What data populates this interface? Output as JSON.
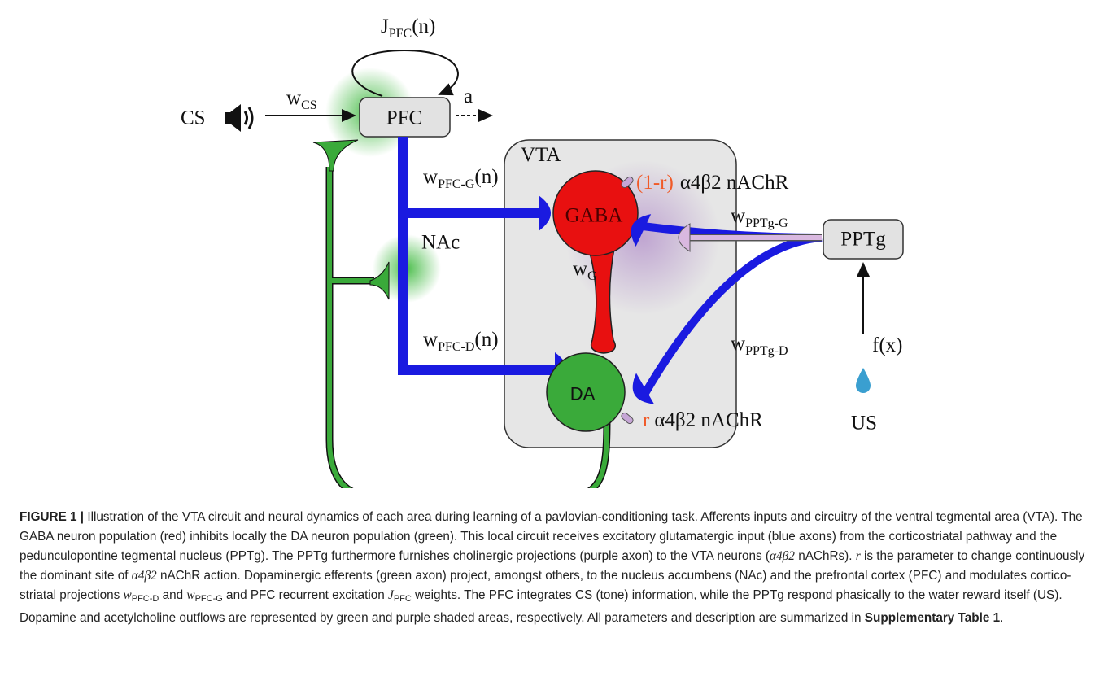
{
  "diagram": {
    "pfc_loop": {
      "main": "J",
      "sub": "PFC",
      "rest": "(n)"
    },
    "cs": "CS",
    "w_cs": {
      "main": "w",
      "sub": "CS"
    },
    "pfc": "PFC",
    "action": "a",
    "vta": "VTA",
    "w_pfc_g": {
      "main": "w",
      "sub": "PFC-G",
      "rest": "(n)"
    },
    "gaba_receptor": {
      "fraction": "(1-r)",
      "receptor": "α4β2 nAChR"
    },
    "gaba": "GABA",
    "w_pptg_g": {
      "main": "w",
      "sub": "PPTg-G"
    },
    "nac": "NAc",
    "w_g": {
      "main": "w",
      "sub": "G"
    },
    "pptg": "PPTg",
    "w_pfc_d": {
      "main": "w",
      "sub": "PFC-D",
      "rest": "(n)"
    },
    "da": "DA",
    "w_pptg_d": {
      "main": "w",
      "sub": "PPTg-D"
    },
    "fx": "f(x)",
    "da_receptor": {
      "fraction": "r",
      "receptor": "α4β2 nAChR"
    },
    "us": "US"
  },
  "caption": {
    "segments": [
      {
        "text": "FIGURE 1 |",
        "style": "bold"
      },
      {
        "text": " Illustration of the VTA circuit and neural dynamics of each area during learning of a pavlovian-conditioning task. Afferents inputs and circuitry of the ventral tegmental area (VTA). The GABA neuron population (red) inhibits locally the DA neuron population (green). This local circuit receives excitatory glutamatergic input (blue axons) from the corticostriatal pathway and the pedunculopontine tegmental nucleus (PPTg). The PPTg furthermore furnishes cholinergic projections (purple axon) to the VTA neurons ("
      },
      {
        "text": "α4β2",
        "style": "italic"
      },
      {
        "text": " nAChRs). "
      },
      {
        "text": "r",
        "style": "italic"
      },
      {
        "text": " is the parameter to change continuously the dominant site of "
      },
      {
        "text": "α4β2",
        "style": "italic"
      },
      {
        "text": " nAChR action. Dopaminergic efferents (green axon) project, amongst others, to the nucleus accumbens (NAc) and the prefrontal cortex (PFC) and modulates cortico-striatal projections "
      },
      {
        "text": "w",
        "style": "italic"
      },
      {
        "text": "PFC-D",
        "style": "sub"
      },
      {
        "text": " and "
      },
      {
        "text": "w",
        "style": "italic"
      },
      {
        "text": "PFC-G",
        "style": "sub"
      },
      {
        "text": " and PFC recurrent excitation "
      },
      {
        "text": "J",
        "style": "italic"
      },
      {
        "text": "PFC",
        "style": "sub"
      },
      {
        "text": " weights. The PFC integrates CS (tone) information, while the PPTg respond phasically to the water reward itself (US). Dopamine and acetylcholine outflows are represented by green and purple shaded areas, respectively. All parameters and description are summarized in "
      },
      {
        "text": "Supplementary Table 1",
        "style": "bold"
      },
      {
        "text": "."
      }
    ]
  }
}
